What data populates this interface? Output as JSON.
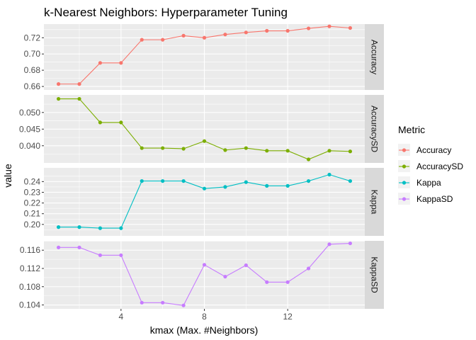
{
  "chart_data": {
    "type": "line",
    "title": "k-Nearest Neighbors: Hyperparameter Tuning",
    "xlabel": "kmax (Max. #Neighbors)",
    "ylabel": "value",
    "legend_title": "Metric",
    "legend_position": "right",
    "grid": true,
    "x": [
      1,
      2,
      3,
      4,
      5,
      6,
      7,
      8,
      9,
      10,
      11,
      12,
      13,
      14,
      15
    ],
    "x_ticks": [
      4,
      8,
      12
    ],
    "xlim": [
      0.3,
      15.7
    ],
    "panels": [
      {
        "strip": "Accuracy",
        "color": "#F8766D",
        "ylim": [
          0.6557,
          0.7368
        ],
        "y_ticks": [
          0.66,
          0.68,
          0.7,
          0.72
        ],
        "y_tick_labels": [
          "0.66",
          "0.68",
          "0.70",
          "0.72"
        ],
        "values": [
          0.663,
          0.663,
          0.689,
          0.689,
          0.7175,
          0.7175,
          0.7225,
          0.72,
          0.724,
          0.7265,
          0.7285,
          0.7285,
          0.7315,
          0.734,
          0.732
        ]
      },
      {
        "strip": "AccuracySD",
        "color": "#7CAE00",
        "ylim": [
          0.03484,
          0.05528
        ],
        "y_ticks": [
          0.04,
          0.045,
          0.05
        ],
        "y_tick_labels": [
          "0.040",
          "0.045",
          "0.050"
        ],
        "values": [
          0.0541,
          0.0541,
          0.047,
          0.047,
          0.0393,
          0.0393,
          0.0391,
          0.0414,
          0.0387,
          0.0393,
          0.0385,
          0.0385,
          0.0359,
          0.0385,
          0.0383
        ]
      },
      {
        "strip": "Kappa",
        "color": "#00BFC4",
        "ylim": [
          0.1893,
          0.2528
        ],
        "y_ticks": [
          0.2,
          0.21,
          0.22,
          0.23,
          0.24
        ],
        "y_tick_labels": [
          "0.20",
          "0.21",
          "0.22",
          "0.23",
          "0.24"
        ],
        "values": [
          0.1975,
          0.1975,
          0.1965,
          0.1965,
          0.2405,
          0.2405,
          0.2405,
          0.2335,
          0.235,
          0.2395,
          0.236,
          0.236,
          0.2405,
          0.2465,
          0.2405
        ]
      },
      {
        "strip": "KappaSD",
        "color": "#C77CFF",
        "ylim": [
          0.10315,
          0.11805
        ],
        "y_ticks": [
          0.104,
          0.108,
          0.112,
          0.116
        ],
        "y_tick_labels": [
          "0.104",
          "0.108",
          "0.112",
          "0.116"
        ],
        "values": [
          0.1166,
          0.1166,
          0.1149,
          0.1149,
          0.1045,
          0.1045,
          0.1039,
          0.1128,
          0.1102,
          0.1127,
          0.109,
          0.109,
          0.112,
          0.1173,
          0.1175
        ]
      }
    ]
  }
}
